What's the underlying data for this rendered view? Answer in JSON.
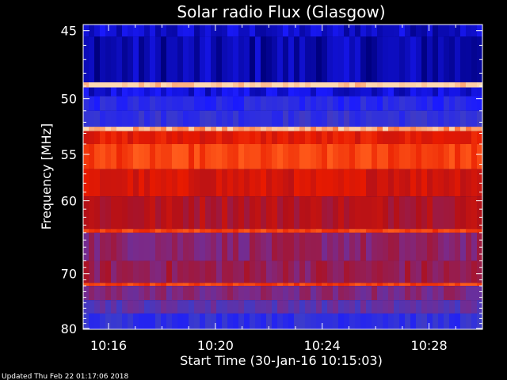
{
  "chart_data": {
    "type": "heatmap",
    "title": "Solar radio Flux (Glasgow)",
    "xlabel": "Start Time (30-Jan-16 10:15:03)",
    "ylabel": "Frequency [MHz]",
    "x_ticks": [
      "10:16",
      "10:20",
      "10:24",
      "10:28"
    ],
    "x_tick_minutes": [
      16,
      20,
      24,
      28
    ],
    "x_range_minutes": [
      15.05,
      30.0
    ],
    "y_ticks": [
      45,
      50,
      55,
      60,
      70,
      80
    ],
    "ylim": [
      44.6,
      80.2
    ],
    "y_scale": "reciprocal",
    "colormap": [
      "#000080",
      "#1a1aff",
      "#3b3bcc",
      "#7a2a8a",
      "#b0101a",
      "#e81a00",
      "#ff5a1a",
      "#ffd9b3"
    ],
    "frequency_bands": [
      {
        "from": 44.6,
        "to": 45.4,
        "intensity": 0.08
      },
      {
        "from": 45.4,
        "to": 48.7,
        "intensity": 0.05
      },
      {
        "from": 48.7,
        "to": 49.1,
        "intensity": 1.0
      },
      {
        "from": 49.1,
        "to": 49.8,
        "intensity": 0.1
      },
      {
        "from": 49.8,
        "to": 51.0,
        "intensity": 0.2
      },
      {
        "from": 51.0,
        "to": 52.4,
        "intensity": 0.25
      },
      {
        "from": 52.4,
        "to": 52.8,
        "intensity": 0.95
      },
      {
        "from": 52.8,
        "to": 54.0,
        "intensity": 0.7
      },
      {
        "from": 54.0,
        "to": 56.5,
        "intensity": 0.8
      },
      {
        "from": 56.5,
        "to": 59.5,
        "intensity": 0.66
      },
      {
        "from": 59.5,
        "to": 63.5,
        "intensity": 0.58
      },
      {
        "from": 63.5,
        "to": 64.0,
        "intensity": 0.8
      },
      {
        "from": 64.0,
        "to": 68.0,
        "intensity": 0.47
      },
      {
        "from": 68.0,
        "to": 71.5,
        "intensity": 0.5
      },
      {
        "from": 71.5,
        "to": 72.0,
        "intensity": 0.8
      },
      {
        "from": 72.0,
        "to": 74.5,
        "intensity": 0.44
      },
      {
        "from": 74.5,
        "to": 77.0,
        "intensity": 0.36
      },
      {
        "from": 77.0,
        "to": 80.2,
        "intensity": 0.24
      }
    ],
    "footer": "Updated Thu Feb 22 01:17:06 2018"
  }
}
